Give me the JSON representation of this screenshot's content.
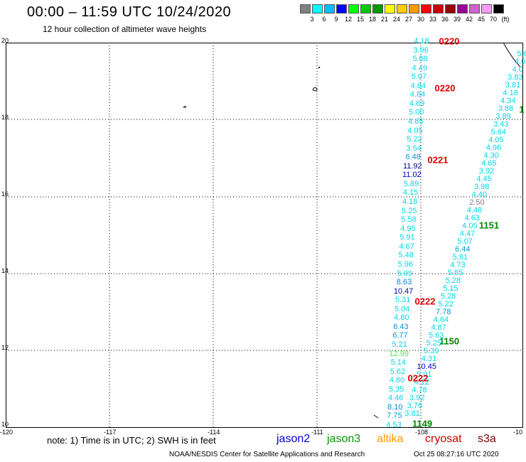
{
  "title": "00:00 – 11:59 UTC 10/24/2020",
  "subtitle": "12 hour collection of altimeter wave heights",
  "color_scale": {
    "labels": [
      "3",
      "6",
      "9",
      "12",
      "15",
      "18",
      "21",
      "24",
      "27",
      "30",
      "33",
      "36",
      "39",
      "42",
      "45",
      "70",
      "(ft)"
    ],
    "colors": [
      "#808080",
      "#00ffff",
      "#00bfff",
      "#0000ff",
      "#00ff00",
      "#00cc00",
      "#009900",
      "#ffff00",
      "#ffcc00",
      "#ff9900",
      "#ff0000",
      "#cc0000",
      "#990000",
      "#990099",
      "#cc66cc",
      "#ff99ff",
      "#000000"
    ]
  },
  "axes": {
    "x_ticks": [
      "-120",
      "-117",
      "-114",
      "-111",
      "-108",
      "-10"
    ],
    "y_ticks": [
      "20",
      "18",
      "16",
      "14",
      "12",
      "10"
    ]
  },
  "track1": [
    {
      "v": "4.18",
      "c": "#00d8e8"
    },
    {
      "v": "3.96",
      "c": "#00d8e8"
    },
    {
      "v": "5.08",
      "c": "#00d8e8"
    },
    {
      "v": "4.49",
      "c": "#00d8e8"
    },
    {
      "v": "5.07",
      "c": "#00d8e8"
    },
    {
      "v": "4.84",
      "c": "#00d8e8"
    },
    {
      "v": "4.84",
      "c": "#00d8e8"
    },
    {
      "v": "4.69",
      "c": "#00d8e8"
    },
    {
      "v": "5.00",
      "c": "#00d8e8"
    },
    {
      "v": "4.85",
      "c": "#00d8e8"
    },
    {
      "v": "4.05",
      "c": "#00d8e8"
    },
    {
      "v": "5.22",
      "c": "#00d8e8"
    },
    {
      "v": "3.54",
      "c": "#00d8e8"
    },
    {
      "v": "6.48",
      "c": "#0099dd"
    },
    {
      "v": "11.92",
      "c": "#00008b"
    },
    {
      "v": "11.02",
      "c": "#0000cc"
    },
    {
      "v": "5.89",
      "c": "#00d8e8"
    },
    {
      "v": "4.15",
      "c": "#00d8e8"
    },
    {
      "v": "4.18",
      "c": "#00d8e8"
    },
    {
      "v": "5.25",
      "c": "#00d8e8"
    },
    {
      "v": "5.58",
      "c": "#00d8e8"
    },
    {
      "v": "4.95",
      "c": "#00d8e8"
    },
    {
      "v": "5.91",
      "c": "#00d8e8"
    },
    {
      "v": "4.67",
      "c": "#00d8e8"
    },
    {
      "v": "5.48",
      "c": "#00d8e8"
    },
    {
      "v": "5.96",
      "c": "#00d8e8"
    },
    {
      "v": "5.99",
      "c": "#00d8e8"
    },
    {
      "v": "8.63",
      "c": "#0088dd"
    },
    {
      "v": "10.47",
      "c": "#0000cc"
    },
    {
      "v": "5.31",
      "c": "#00d8e8"
    },
    {
      "v": "5.04",
      "c": "#00d8e8"
    },
    {
      "v": "4.80",
      "c": "#00d8e8"
    },
    {
      "v": "6.43",
      "c": "#0099dd"
    },
    {
      "v": "6.77",
      "c": "#0099dd"
    },
    {
      "v": "5.21",
      "c": "#00d8e8"
    },
    {
      "v": "12.99",
      "c": "#44ee44"
    },
    {
      "v": "5.14",
      "c": "#00d8e8"
    },
    {
      "v": "5.62",
      "c": "#00d8e8"
    },
    {
      "v": "4.80",
      "c": "#00d8e8"
    },
    {
      "v": "5.35",
      "c": "#00d8e8"
    },
    {
      "v": "4.46",
      "c": "#00d8e8"
    },
    {
      "v": "8.10",
      "c": "#0088dd"
    },
    {
      "v": "7.75",
      "c": "#0099dd"
    },
    {
      "v": "4.53",
      "c": "#00d8e8"
    }
  ],
  "track2": [
    {
      "v": "5.6",
      "c": "#00d8e8"
    },
    {
      "v": "4.0",
      "c": "#00d8e8"
    },
    {
      "v": "4.0",
      "c": "#00d8e8"
    },
    {
      "v": "3.83",
      "c": "#00d8e8"
    },
    {
      "v": "3.81",
      "c": "#00d8e8"
    },
    {
      "v": "4.18",
      "c": "#00d8e8"
    },
    {
      "v": "4.34",
      "c": "#00d8e8"
    },
    {
      "v": "3.88",
      "c": "#00d8e8"
    },
    {
      "v": "3.89",
      "c": "#00d8e8"
    },
    {
      "v": "3.43",
      "c": "#00d8e8"
    },
    {
      "v": "5.64",
      "c": "#00d8e8"
    },
    {
      "v": "4.05",
      "c": "#00d8e8"
    },
    {
      "v": "4.96",
      "c": "#00d8e8"
    },
    {
      "v": "4.30",
      "c": "#00d8e8"
    },
    {
      "v": "4.65",
      "c": "#00d8e8"
    },
    {
      "v": "3.92",
      "c": "#00d8e8"
    },
    {
      "v": "4.45",
      "c": "#00d8e8"
    },
    {
      "v": "3.98",
      "c": "#00d8e8"
    },
    {
      "v": "4.40",
      "c": "#00d8e8"
    },
    {
      "v": "2.50",
      "c": "#808080"
    },
    {
      "v": "4.48",
      "c": "#00d8e8"
    },
    {
      "v": "4.63",
      "c": "#00d8e8"
    },
    {
      "v": "4.05",
      "c": "#00d8e8"
    },
    {
      "v": "4.47",
      "c": "#00d8e8"
    },
    {
      "v": "5.07",
      "c": "#00d8e8"
    },
    {
      "v": "6.44",
      "c": "#0099dd"
    },
    {
      "v": "5.81",
      "c": "#00d8e8"
    },
    {
      "v": "4.73",
      "c": "#00d8e8"
    },
    {
      "v": "5.85",
      "c": "#00d8e8"
    },
    {
      "v": "5.28",
      "c": "#00d8e8"
    },
    {
      "v": "5.15",
      "c": "#00d8e8"
    },
    {
      "v": "5.28",
      "c": "#00d8e8"
    },
    {
      "v": "5.22",
      "c": "#00d8e8"
    },
    {
      "v": "7.78",
      "c": "#0099dd"
    },
    {
      "v": "4.64",
      "c": "#00d8e8"
    },
    {
      "v": "4.87",
      "c": "#00d8e8"
    },
    {
      "v": "5.63",
      "c": "#00d8e8"
    },
    {
      "v": "5.25",
      "c": "#00d8e8"
    },
    {
      "v": "5.39",
      "c": "#00d8e8"
    },
    {
      "v": "4.31",
      "c": "#00d8e8"
    },
    {
      "v": "10.45",
      "c": "#0000cc"
    },
    {
      "v": "5.01",
      "c": "#00d8e8"
    },
    {
      "v": "4.12",
      "c": "#00d8e8"
    },
    {
      "v": "4.78",
      "c": "#00d8e8"
    },
    {
      "v": "3.92",
      "c": "#00d8e8"
    },
    {
      "v": "3.76",
      "c": "#00d8e8"
    },
    {
      "v": "3.81",
      "c": "#00d8e8"
    }
  ],
  "times": [
    {
      "t": "0220",
      "c": "#dd0000"
    },
    {
      "t": "0220",
      "c": "#dd0000"
    },
    {
      "t": "0221",
      "c": "#dd0000"
    },
    {
      "t": "1151",
      "c": "#008800"
    },
    {
      "t": "0222",
      "c": "#dd0000"
    },
    {
      "t": "1150",
      "c": "#008800"
    },
    {
      "t": "0222",
      "c": "#dd0000"
    },
    {
      "t": "1149",
      "c": "#008800"
    },
    {
      "t": "1",
      "c": "#008800"
    }
  ],
  "footer": {
    "note": "note: 1) Time is in UTC; 2) SWH is in feet",
    "satellites": [
      {
        "name": "jason2",
        "color": "#0000cc"
      },
      {
        "name": "jason3",
        "color": "#009900"
      },
      {
        "name": "altika",
        "color": "#ff9900"
      },
      {
        "name": "cryosat",
        "color": "#cc0000"
      },
      {
        "name": "s3a",
        "color": "#800000"
      }
    ],
    "credit": "NOAA/NESDIS Center for Satellite Applications and Research",
    "timestamp": "Oct 25 08:27:16 UTC 2020"
  }
}
